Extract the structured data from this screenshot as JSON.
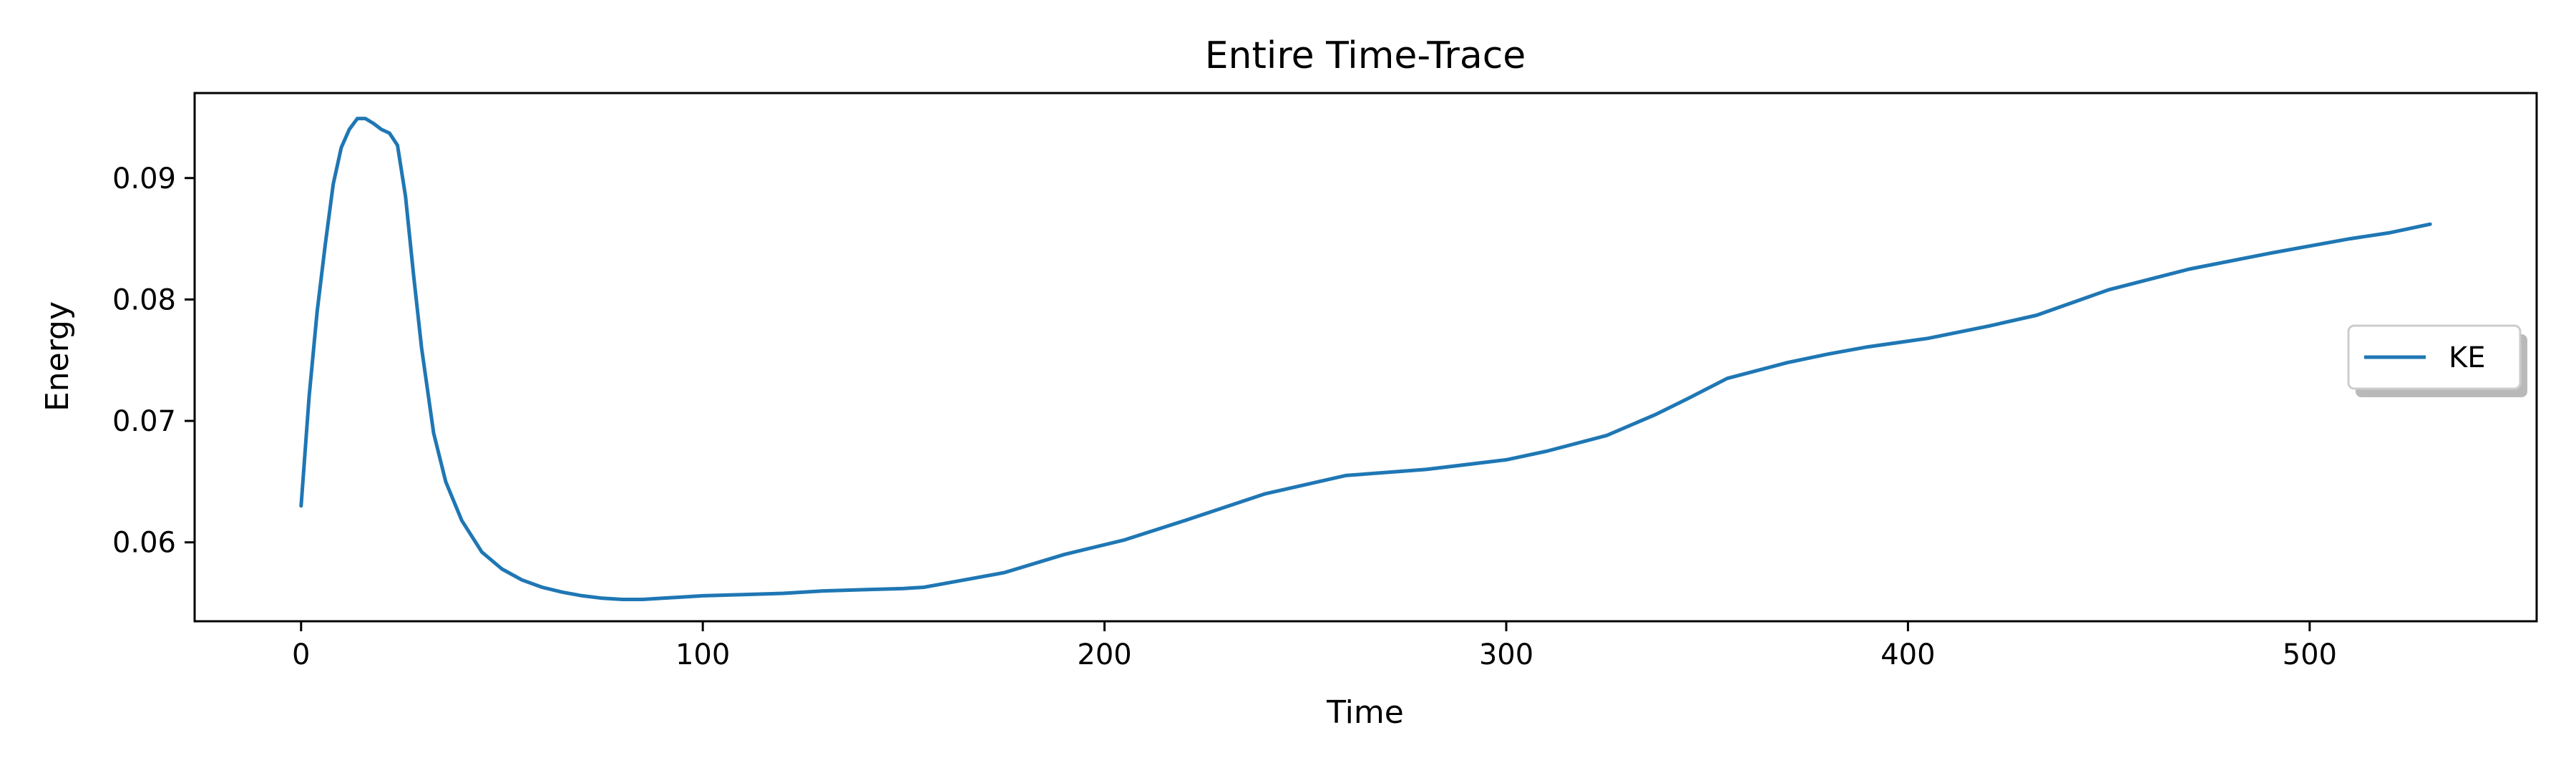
{
  "chart_data": {
    "type": "line",
    "title": "Entire Time-Trace",
    "xlabel": "Time",
    "ylabel": "Energy",
    "xlim": [
      -26.5,
      556.5
    ],
    "ylim": [
      0.0535,
      0.097
    ],
    "x_ticks": [
      0,
      100,
      200,
      300,
      400,
      500
    ],
    "y_ticks": [
      0.06,
      0.07,
      0.08,
      0.09
    ],
    "x_tick_labels": [
      "0",
      "100",
      "200",
      "300",
      "400",
      "500"
    ],
    "y_tick_labels": [
      "0.06",
      "0.07",
      "0.08",
      "0.09"
    ],
    "grid": false,
    "legend": {
      "placement": "center-right",
      "shadow": true
    },
    "series": [
      {
        "name": "KE",
        "color": "#1f77b4",
        "x": [
          0,
          2,
          4,
          6,
          8,
          10,
          12,
          14,
          16,
          18,
          20,
          22,
          24,
          26,
          28,
          30,
          33,
          36,
          40,
          45,
          50,
          55,
          60,
          65,
          70,
          75,
          80,
          85,
          90,
          95,
          100,
          110,
          120,
          130,
          140,
          150,
          155,
          160,
          175,
          190,
          205,
          220,
          240,
          260,
          280,
          300,
          310,
          325,
          337,
          345,
          355,
          370,
          380,
          390,
          405,
          420,
          432,
          450,
          470,
          490,
          510,
          520,
          530
        ],
        "y": [
          0.063,
          0.072,
          0.079,
          0.0845,
          0.0895,
          0.0925,
          0.094,
          0.0949,
          0.0949,
          0.0945,
          0.094,
          0.0937,
          0.0927,
          0.0885,
          0.082,
          0.076,
          0.069,
          0.065,
          0.0618,
          0.0592,
          0.0578,
          0.0569,
          0.0563,
          0.0559,
          0.0556,
          0.0554,
          0.0553,
          0.0553,
          0.0554,
          0.0555,
          0.0556,
          0.0557,
          0.0558,
          0.056,
          0.0561,
          0.0562,
          0.0563,
          0.0566,
          0.0575,
          0.059,
          0.0602,
          0.0618,
          0.064,
          0.0655,
          0.066,
          0.0668,
          0.0675,
          0.0688,
          0.0705,
          0.0718,
          0.0735,
          0.0748,
          0.0755,
          0.0761,
          0.0768,
          0.0778,
          0.0787,
          0.0808,
          0.0825,
          0.0838,
          0.085,
          0.0855,
          0.0862
        ]
      }
    ]
  }
}
